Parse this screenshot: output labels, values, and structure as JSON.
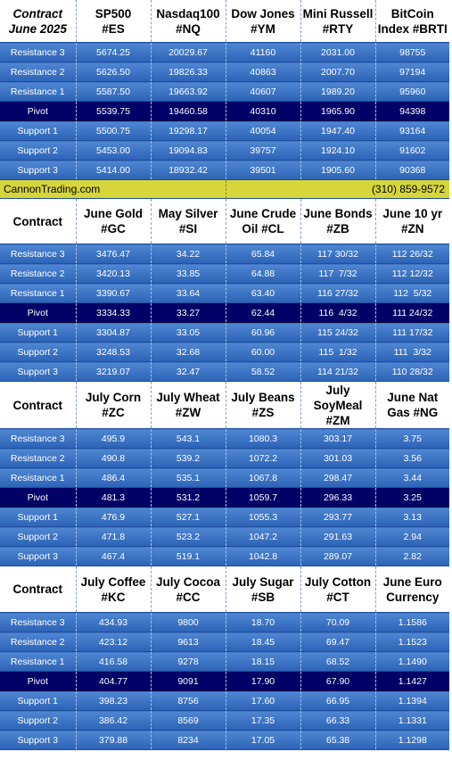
{
  "blocks": [
    {
      "header": [
        "Contract\nJune 2025",
        "SP500\n#ES",
        "Nasdaq100\n#NQ",
        "Dow Jones\n#YM",
        "Mini Russell\n#RTY",
        "BitCoin\nIndex #BRTI"
      ],
      "rows": [
        [
          "Resistance 3",
          "5674.25",
          "20029.67",
          "41160",
          "2031.00",
          "98755"
        ],
        [
          "Resistance 2",
          "5626.50",
          "19826.33",
          "40863",
          "2007.70",
          "97194"
        ],
        [
          "Resistance 1",
          "5587.50",
          "19663.92",
          "40607",
          "1989.20",
          "95960"
        ],
        [
          "Pivot",
          "5539.75",
          "19460.58",
          "40310",
          "1965.90",
          "94398"
        ],
        [
          "Support 1",
          "5500.75",
          "19298.17",
          "40054",
          "1947.40",
          "93164"
        ],
        [
          "Support 2",
          "5453.00",
          "19094.83",
          "39757",
          "1924.10",
          "91602"
        ],
        [
          "Support 3",
          "5414.00",
          "18932.42",
          "39501",
          "1905.60",
          "90368"
        ]
      ]
    },
    {
      "header": [
        "Contract",
        "June Gold\n#GC",
        "May Silver\n#SI",
        "June Crude\nOil #CL",
        "June Bonds\n#ZB",
        "June 10 yr\n#ZN"
      ],
      "rows": [
        [
          "Resistance 3",
          "3476.47",
          "34.22",
          "65.84",
          "117 30/32",
          "112 26/32"
        ],
        [
          "Resistance 2",
          "3420.13",
          "33.85",
          "64.88",
          "117  7/32",
          "112 12/32"
        ],
        [
          "Resistance 1",
          "3390.67",
          "33.64",
          "63.40",
          "116 27/32",
          "112  5/32"
        ],
        [
          "Pivot",
          "3334.33",
          "33.27",
          "62.44",
          "116  4/32",
          "111 24/32"
        ],
        [
          "Support 1",
          "3304.87",
          "33.05",
          "60.96",
          "115 24/32",
          "111 17/32"
        ],
        [
          "Support 2",
          "3248.53",
          "32.68",
          "60.00",
          "115  1/32",
          "111  3/32"
        ],
        [
          "Support 3",
          "3219.07",
          "32.47",
          "58.52",
          "114 21/32",
          "110 28/32"
        ]
      ]
    },
    {
      "header": [
        "Contract",
        "July Corn\n#ZC",
        "July  Wheat\n#ZW",
        "July Beans\n#ZS",
        "July\nSoyMeal\n#ZM",
        "June Nat\nGas #NG"
      ],
      "rows": [
        [
          "Resistance 3",
          "495.9",
          "543.1",
          "1080.3",
          "303.17",
          "3.75"
        ],
        [
          "Resistance 2",
          "490.8",
          "539.2",
          "1072.2",
          "301.03",
          "3.56"
        ],
        [
          "Resistance 1",
          "486.4",
          "535.1",
          "1067.8",
          "298.47",
          "3.44"
        ],
        [
          "Pivot",
          "481.3",
          "531.2",
          "1059.7",
          "296.33",
          "3.25"
        ],
        [
          "Support 1",
          "476.9",
          "527.1",
          "1055.3",
          "293.77",
          "3.13"
        ],
        [
          "Support 2",
          "471.8",
          "523.2",
          "1047.2",
          "291.63",
          "2.94"
        ],
        [
          "Support 3",
          "467.4",
          "519.1",
          "1042.8",
          "289.07",
          "2.82"
        ]
      ]
    },
    {
      "header": [
        "Contract",
        "July Coffee\n#KC",
        "July Cocoa\n#CC",
        "July Sugar\n#SB",
        "July Cotton\n#CT",
        "June Euro\nCurrency"
      ],
      "rows": [
        [
          "Resistance 3",
          "434.93",
          "9800",
          "18.70",
          "70.09",
          "1.1586"
        ],
        [
          "Resistance 2",
          "423.12",
          "9613",
          "18.45",
          "69.47",
          "1.1523"
        ],
        [
          "Resistance 1",
          "416.58",
          "9278",
          "18.15",
          "68.52",
          "1.1490"
        ],
        [
          "Pivot",
          "404.77",
          "9091",
          "17.90",
          "67.90",
          "1.1427"
        ],
        [
          "Support 1",
          "398.23",
          "8756",
          "17.60",
          "66.95",
          "1.1394"
        ],
        [
          "Support 2",
          "386.42",
          "8569",
          "17.35",
          "66.33",
          "1.1331"
        ],
        [
          "Support 3",
          "379.88",
          "8234",
          "17.05",
          "65.38",
          "1.1298"
        ]
      ]
    }
  ],
  "banner": {
    "site": "CannonTrading.com",
    "phone": "(310) 859-9572"
  },
  "colors": {
    "row_gradient_top": "#4f87d2",
    "row_gradient_bottom": "#2c63b6",
    "pivot": "#000066",
    "banner": "#d6d63a"
  }
}
